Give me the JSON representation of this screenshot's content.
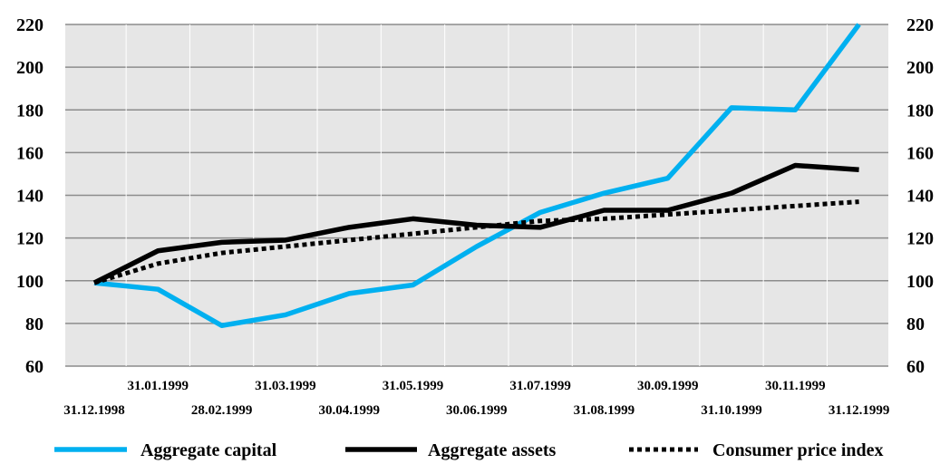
{
  "chart_data": {
    "type": "line",
    "title": "",
    "xlabel": "",
    "ylabel": "",
    "ylim": [
      60,
      220
    ],
    "yticks": [
      60,
      80,
      100,
      120,
      140,
      160,
      180,
      200,
      220
    ],
    "y_axis_sides": [
      "left",
      "right"
    ],
    "grid": "horizontal",
    "plot_background": "#e6e6e6",
    "legend_position": "bottom",
    "categories": [
      "31.12.1998",
      "31.01.1999",
      "28.02.1999",
      "31.03.1999",
      "30.04.1999",
      "31.05.1999",
      "30.06.1999",
      "31.07.1999",
      "31.08.1999",
      "30.09.1999",
      "31.10.1999",
      "30.11.1999",
      "31.12.1999"
    ],
    "series": [
      {
        "name": "Aggregate capital",
        "color": "#00b0f0",
        "style": "solid",
        "values": [
          99,
          96,
          79,
          84,
          94,
          98,
          116,
          132,
          141,
          148,
          181,
          180,
          220
        ]
      },
      {
        "name": "Aggregate assets",
        "color": "#000000",
        "style": "solid",
        "values": [
          99,
          114,
          118,
          119,
          125,
          129,
          126,
          125,
          133,
          133,
          141,
          154,
          152
        ]
      },
      {
        "name": "Consumer price index",
        "color": "#000000",
        "style": "dotted",
        "values": [
          99,
          108,
          113,
          116,
          119,
          122,
          125,
          128,
          129,
          131,
          133,
          135,
          137
        ]
      }
    ]
  }
}
